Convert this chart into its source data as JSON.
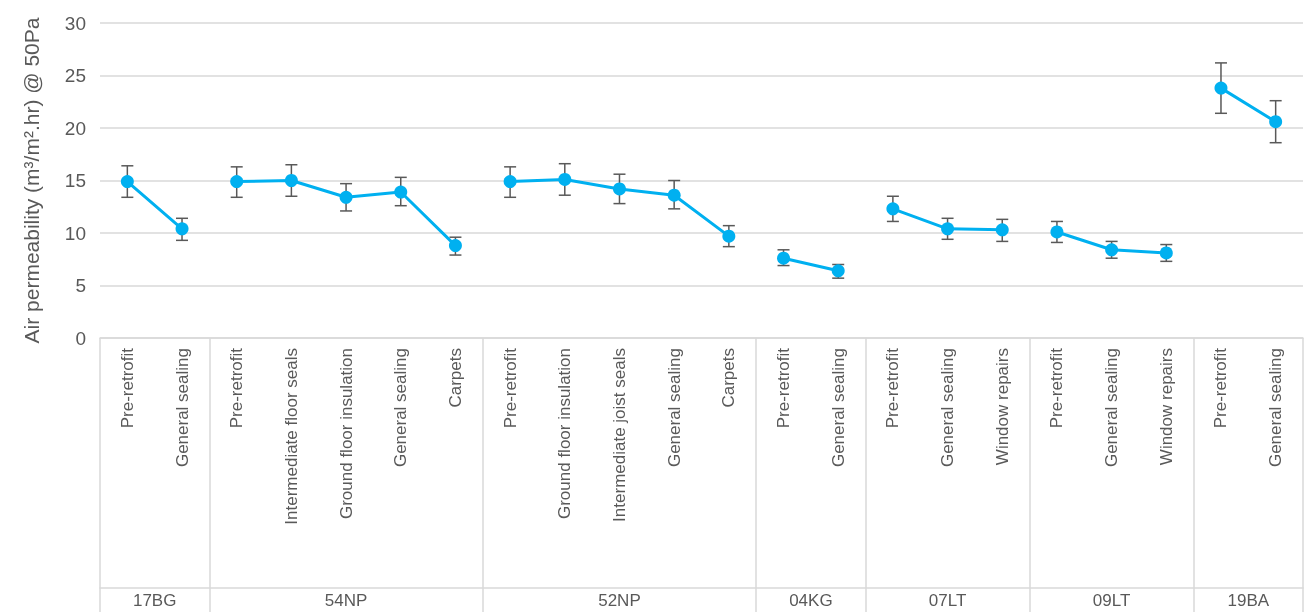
{
  "chart_data": {
    "type": "line",
    "ylabel": "Air permeability (m³/m².hr) @ 50Pa",
    "categories": [
      "Pre-retrofit",
      "General sealing",
      "Pre-retrofit",
      "Intermediate floor seals",
      "Ground floor insulation",
      "General sealing",
      "Carpets",
      "Pre-retrofit",
      "Ground floor insulation",
      "Intermediate joist seals",
      "General sealing",
      "Carpets",
      "Pre-retrofit",
      "General sealing",
      "Pre-retrofit",
      "General sealing",
      "Window repairs",
      "Pre-retrofit",
      "General sealing",
      "Window repairs",
      "Pre-retrofit",
      "General sealing"
    ],
    "series": [
      {
        "color": "#00b0f0",
        "values": [
          14.9,
          10.4,
          null,
          null,
          null,
          null,
          null,
          null,
          null,
          null,
          null,
          null,
          null,
          null,
          null,
          null,
          null,
          null,
          null,
          null,
          null,
          null
        ],
        "errors": [
          [
            13.4,
            16.4
          ],
          [
            9.3,
            11.4
          ],
          null,
          null,
          null,
          null,
          null,
          null,
          null,
          null,
          null,
          null,
          null,
          null,
          null,
          null,
          null,
          null,
          null,
          null,
          null,
          null
        ]
      },
      {
        "color": "#00b0f0",
        "values": [
          null,
          null,
          14.9,
          15.0,
          13.4,
          13.9,
          8.8,
          null,
          null,
          null,
          null,
          null,
          null,
          null,
          null,
          null,
          null,
          null,
          null,
          null,
          null,
          null
        ],
        "errors": [
          null,
          null,
          [
            13.4,
            16.3
          ],
          [
            13.5,
            16.5
          ],
          [
            12.1,
            14.7
          ],
          [
            12.6,
            15.3
          ],
          [
            7.9,
            9.6
          ],
          null,
          null,
          null,
          null,
          null,
          null,
          null,
          null,
          null,
          null,
          null,
          null,
          null,
          null,
          null
        ]
      },
      {
        "color": "#00b0f0",
        "values": [
          null,
          null,
          null,
          null,
          null,
          null,
          null,
          14.9,
          15.1,
          14.2,
          13.6,
          9.7,
          null,
          null,
          null,
          null,
          null,
          null,
          null,
          null,
          null,
          null
        ],
        "errors": [
          null,
          null,
          null,
          null,
          null,
          null,
          null,
          [
            13.4,
            16.3
          ],
          [
            13.6,
            16.6
          ],
          [
            12.8,
            15.6
          ],
          [
            12.3,
            15.0
          ],
          [
            8.7,
            10.7
          ],
          null,
          null,
          null,
          null,
          null,
          null,
          null,
          null,
          null,
          null
        ]
      },
      {
        "color": "#00b0f0",
        "values": [
          null,
          null,
          null,
          null,
          null,
          null,
          null,
          null,
          null,
          null,
          null,
          null,
          7.6,
          6.4,
          null,
          null,
          null,
          null,
          null,
          null,
          null,
          null
        ],
        "errors": [
          null,
          null,
          null,
          null,
          null,
          null,
          null,
          null,
          null,
          null,
          null,
          null,
          [
            6.9,
            8.4
          ],
          [
            5.7,
            7.0
          ],
          null,
          null,
          null,
          null,
          null,
          null,
          null,
          null
        ]
      },
      {
        "color": "#00b0f0",
        "values": [
          null,
          null,
          null,
          null,
          null,
          null,
          null,
          null,
          null,
          null,
          null,
          null,
          null,
          null,
          12.3,
          10.4,
          10.3,
          null,
          null,
          null,
          null,
          null
        ],
        "errors": [
          null,
          null,
          null,
          null,
          null,
          null,
          null,
          null,
          null,
          null,
          null,
          null,
          null,
          null,
          [
            11.1,
            13.5
          ],
          [
            9.4,
            11.4
          ],
          [
            9.2,
            11.3
          ],
          null,
          null,
          null,
          null,
          null
        ]
      },
      {
        "color": "#00b0f0",
        "values": [
          null,
          null,
          null,
          null,
          null,
          null,
          null,
          null,
          null,
          null,
          null,
          null,
          null,
          null,
          null,
          null,
          null,
          10.1,
          8.4,
          8.1,
          null,
          null
        ],
        "errors": [
          null,
          null,
          null,
          null,
          null,
          null,
          null,
          null,
          null,
          null,
          null,
          null,
          null,
          null,
          null,
          null,
          null,
          [
            9.1,
            11.1
          ],
          [
            7.6,
            9.2
          ],
          [
            7.3,
            8.9
          ],
          null,
          null
        ]
      },
      {
        "color": "#00b0f0",
        "values": [
          null,
          null,
          null,
          null,
          null,
          null,
          null,
          null,
          null,
          null,
          null,
          null,
          null,
          null,
          null,
          null,
          null,
          null,
          null,
          null,
          23.8,
          20.6
        ],
        "errors": [
          null,
          null,
          null,
          null,
          null,
          null,
          null,
          null,
          null,
          null,
          null,
          null,
          null,
          null,
          null,
          null,
          null,
          null,
          null,
          null,
          [
            21.4,
            26.2
          ],
          [
            18.6,
            22.6
          ]
        ]
      }
    ],
    "annotations": [
      "17BG",
      "54NP",
      "52NP",
      "04KG",
      "07LT",
      "09LT",
      "19BA"
    ],
    "ylim": [
      0,
      30
    ],
    "yticks": [
      0,
      5,
      10,
      15,
      20,
      25,
      30
    ],
    "grid": "y",
    "marker": "circle",
    "line_style": "solid"
  }
}
